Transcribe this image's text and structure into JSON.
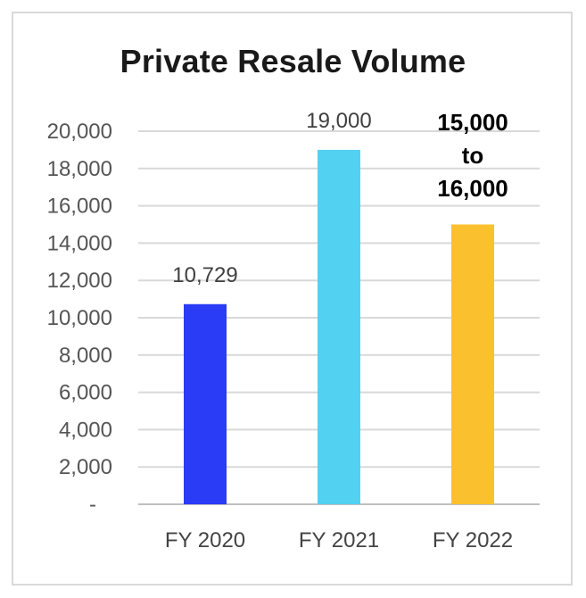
{
  "chart_data": {
    "type": "bar",
    "title": "Private Resale Volume",
    "categories": [
      "FY 2020",
      "FY 2021",
      "FY 2022"
    ],
    "values": [
      10729,
      19000,
      15000
    ],
    "data_labels": [
      [
        "10,729"
      ],
      [
        "19,000"
      ],
      [
        "15,000",
        "to",
        "16,000"
      ]
    ],
    "colors": [
      "#2a3cf5",
      "#52d1f0",
      "#fbc02d"
    ],
    "y_ticks": [
      "-",
      "2,000",
      "4,000",
      "6,000",
      "8,000",
      "10,000",
      "12,000",
      "14,000",
      "16,000",
      "18,000",
      "20,000"
    ],
    "ylim": [
      0,
      20000
    ],
    "grid": true,
    "xlabel": "",
    "ylabel": ""
  }
}
